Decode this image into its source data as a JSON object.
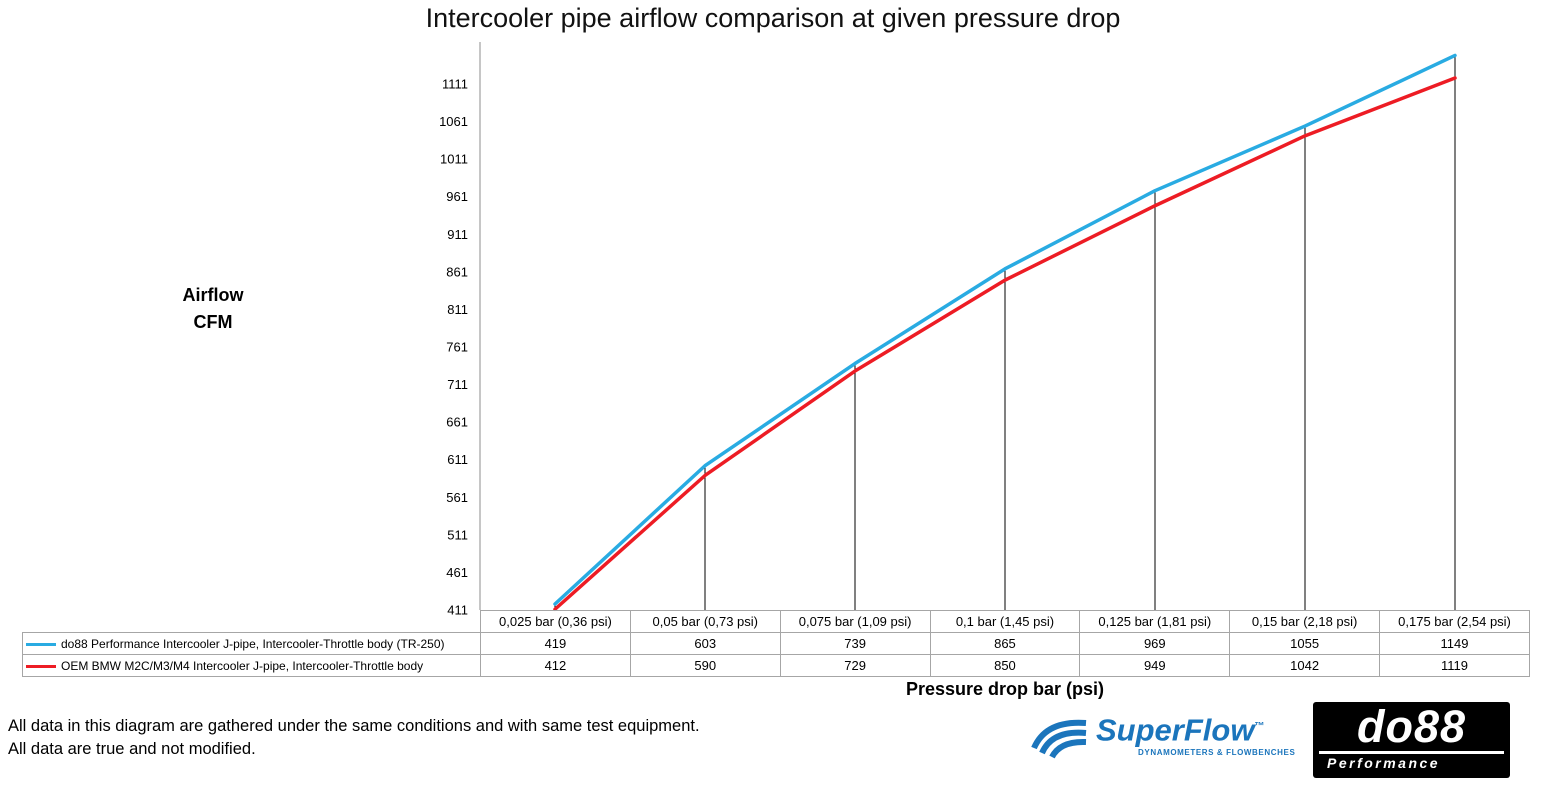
{
  "chart_data": {
    "type": "line",
    "title": "Intercooler pipe airflow comparison at given pressure drop",
    "xlabel": "Pressure drop bar (psi)",
    "ylabel": "Airflow\nCFM",
    "ylim": [
      411,
      1160
    ],
    "y_ticks": [
      411,
      461,
      511,
      561,
      611,
      661,
      711,
      761,
      811,
      861,
      911,
      961,
      1011,
      1061,
      1111
    ],
    "grid": "vertical drop lines at each category, no horizontal gridlines",
    "legend_position": "table below chart",
    "categories": [
      "0,025 bar (0,36 psi)",
      "0,05 bar (0,73 psi)",
      "0,075 bar (1,09 psi)",
      "0,1 bar (1,45 psi)",
      "0,125 bar (1,81 psi)",
      "0,15 bar (2,18 psi)",
      "0,175 bar (2,54 psi)"
    ],
    "series": [
      {
        "name": "do88 Performance Intercooler J-pipe, Intercooler-Throttle body (TR-250)",
        "color": "#29abe2",
        "values": [
          419,
          603,
          739,
          865,
          969,
          1055,
          1149
        ]
      },
      {
        "name": "OEM BMW M2C/M3/M4 Intercooler J-pipe, Intercooler-Throttle body",
        "color": "#ed1c24",
        "values": [
          412,
          590,
          729,
          850,
          949,
          1042,
          1119
        ]
      }
    ]
  },
  "footnote": {
    "text": "All data in this diagram are gathered under the same conditions and with same test equipment.\nAll data are true and not modified."
  },
  "logos": {
    "superflow": {
      "name": "SuperFlow",
      "tm": "™",
      "subtext": "DYNAMOMETERS & FLOWBENCHES",
      "color": "#1b75bc"
    },
    "do88": {
      "name": "do88",
      "subtext": "Performance",
      "bg": "#000000",
      "fg": "#ffffff"
    }
  }
}
